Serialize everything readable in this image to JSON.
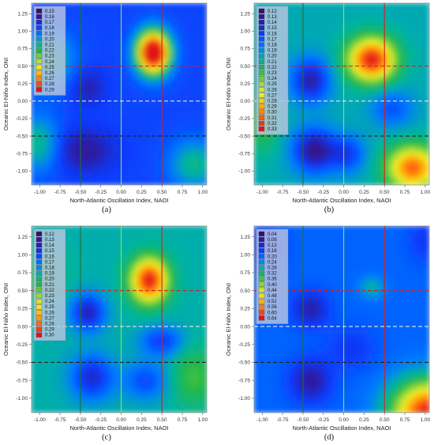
{
  "chart_data": [
    {
      "type": "heatmap",
      "panel_label": "(a)",
      "xlabel": "North-Atlantic Oscillation Index, NAOI",
      "ylabel": "Oceanic El-Niño Index, ONI",
      "xlim": [
        -1.1,
        1.05
      ],
      "ylim": [
        -1.2,
        1.4
      ],
      "x_ticks": [
        "-1.00",
        "-0.75",
        "-0.50",
        "-0.25",
        "0.00",
        "0.25",
        "0.50",
        "0.75",
        "1.00"
      ],
      "y_ticks": [
        "1.25",
        "1.00",
        "0.75",
        "0.50",
        "0.25",
        "0.00",
        "-0.25",
        "-0.50",
        "-0.75",
        "-1.00"
      ],
      "legend_levels": [
        "0.15",
        "0.16",
        "0.17",
        "0.18",
        "0.19",
        "0.20",
        "0.21",
        "0.22",
        "0.23",
        "0.24",
        "0.25",
        "0.26",
        "0.27",
        "0.28",
        "0.29"
      ],
      "vmin": 0.15,
      "vmax": 0.29,
      "base": 0.18,
      "peaks": [
        {
          "x": 0.4,
          "y": 0.7,
          "sx": 0.2,
          "sy": 0.3,
          "v": 0.135
        },
        {
          "x": -0.45,
          "y": -0.7,
          "sx": 0.35,
          "sy": 0.3,
          "v": -0.02
        },
        {
          "x": -0.4,
          "y": 0.2,
          "sx": 0.2,
          "sy": 0.25,
          "v": -0.015
        },
        {
          "x": -0.9,
          "y": 0.6,
          "sx": 0.3,
          "sy": 0.4,
          "v": 0.035
        },
        {
          "x": 0.9,
          "y": -0.9,
          "sx": 0.3,
          "sy": 0.35,
          "v": 0.03
        },
        {
          "x": -1.0,
          "y": -0.6,
          "sx": 0.25,
          "sy": 0.4,
          "v": 0.03
        }
      ],
      "vlines": [
        {
          "x": -0.5,
          "color": "#1e6e3c",
          "dash": false
        },
        {
          "x": 0.0,
          "color": "#9be23c",
          "dash": false
        },
        {
          "x": 0.5,
          "color": "#d22020",
          "dash": false
        }
      ],
      "hlines": [
        {
          "y": 0.5,
          "color": "#d22020"
        },
        {
          "y": 0.0,
          "color": "#e8e8e8"
        },
        {
          "y": -0.5,
          "color": "#222222"
        }
      ]
    },
    {
      "type": "heatmap",
      "panel_label": "(b)",
      "xlabel": "North-Atlantic Oscillation Index, NAOI",
      "ylabel": "Oceanic El-Niño Index, ONI",
      "xlim": [
        -1.1,
        1.05
      ],
      "ylim": [
        -1.2,
        1.4
      ],
      "x_ticks": [
        "-1.00",
        "-0.75",
        "-0.50",
        "-0.25",
        "0.00",
        "0.25",
        "0.50",
        "0.75",
        "1.00"
      ],
      "y_ticks": [
        "1.25",
        "1.00",
        "0.75",
        "0.50",
        "0.25",
        "0.00",
        "-0.25",
        "-0.50",
        "-0.75",
        "-1.00"
      ],
      "legend_levels": [
        "0.12",
        "0.13",
        "0.14",
        "0.15",
        "0.16",
        "0.17",
        "0.18",
        "0.19",
        "0.20",
        "0.21",
        "0.22",
        "0.23",
        "0.24",
        "0.25",
        "0.26",
        "0.27",
        "0.28",
        "0.29",
        "0.30",
        "0.31",
        "0.32",
        "0.33"
      ],
      "vmin": 0.12,
      "vmax": 0.33,
      "base": 0.2,
      "peaks": [
        {
          "x": 0.35,
          "y": 0.6,
          "sx": 0.28,
          "sy": 0.3,
          "v": 0.13
        },
        {
          "x": -0.4,
          "y": 0.3,
          "sx": 0.22,
          "sy": 0.3,
          "v": -0.06
        },
        {
          "x": -0.35,
          "y": -0.7,
          "sx": 0.25,
          "sy": 0.3,
          "v": -0.07
        },
        {
          "x": 0.05,
          "y": -0.75,
          "sx": 0.2,
          "sy": 0.25,
          "v": -0.04
        },
        {
          "x": 0.85,
          "y": -0.95,
          "sx": 0.3,
          "sy": 0.3,
          "v": 0.11
        },
        {
          "x": -1.0,
          "y": -0.3,
          "sx": 0.2,
          "sy": 0.4,
          "v": 0.03
        },
        {
          "x": 0.6,
          "y": -0.1,
          "sx": 0.25,
          "sy": 0.25,
          "v": -0.03
        }
      ],
      "vlines": [
        {
          "x": -0.5,
          "color": "#1e6e3c",
          "dash": false
        },
        {
          "x": 0.0,
          "color": "#9be23c",
          "dash": false
        },
        {
          "x": 0.5,
          "color": "#d22020",
          "dash": false
        }
      ],
      "hlines": [
        {
          "y": 0.5,
          "color": "#d22020"
        },
        {
          "y": 0.0,
          "color": "#e8e8e8"
        },
        {
          "y": -0.5,
          "color": "#222222"
        }
      ]
    },
    {
      "type": "heatmap",
      "panel_label": "(c)",
      "xlabel": "North-Atlantic Oscillation Index, NAOI",
      "ylabel": "Oceanic El-Niño Index, ONI",
      "xlim": [
        -1.1,
        1.05
      ],
      "ylim": [
        -1.2,
        1.4
      ],
      "x_ticks": [
        "-1.00",
        "-0.75",
        "-0.50",
        "-0.25",
        "0.00",
        "0.25",
        "0.50",
        "0.75",
        "1.00"
      ],
      "y_ticks": [
        "1.25",
        "1.00",
        "0.75",
        "0.50",
        "0.25",
        "0.00",
        "-0.25",
        "-0.50",
        "-0.75",
        "-1.00"
      ],
      "legend_levels": [
        "0.12",
        "0.13",
        "0.14",
        "0.15",
        "0.16",
        "0.17",
        "0.18",
        "0.19",
        "0.20",
        "0.21",
        "0.22",
        "0.23",
        "0.24",
        "0.25",
        "0.26",
        "0.27",
        "0.28",
        "0.29",
        "0.30"
      ],
      "vmin": 0.12,
      "vmax": 0.3,
      "base": 0.19,
      "peaks": [
        {
          "x": 0.35,
          "y": 0.65,
          "sx": 0.22,
          "sy": 0.3,
          "v": 0.11
        },
        {
          "x": -0.4,
          "y": 0.2,
          "sx": 0.2,
          "sy": 0.25,
          "v": -0.05
        },
        {
          "x": -0.35,
          "y": -0.7,
          "sx": 0.25,
          "sy": 0.3,
          "v": -0.045
        },
        {
          "x": 0.3,
          "y": -0.75,
          "sx": 0.25,
          "sy": 0.25,
          "v": -0.03
        },
        {
          "x": 0.5,
          "y": -0.2,
          "sx": 0.25,
          "sy": 0.2,
          "v": -0.035
        },
        {
          "x": -0.95,
          "y": 0.7,
          "sx": 0.25,
          "sy": 0.4,
          "v": 0.02
        },
        {
          "x": 0.9,
          "y": -0.7,
          "sx": 0.25,
          "sy": 0.4,
          "v": 0.025
        }
      ],
      "vlines": [
        {
          "x": -0.5,
          "color": "#1e6e3c",
          "dash": false
        },
        {
          "x": 0.0,
          "color": "#9be23c",
          "dash": false
        },
        {
          "x": 0.5,
          "color": "#d22020",
          "dash": false
        }
      ],
      "hlines": [
        {
          "y": 0.5,
          "color": "#d22020"
        },
        {
          "y": 0.0,
          "color": "#e8e8e8"
        },
        {
          "y": -0.5,
          "color": "#222222"
        }
      ]
    },
    {
      "type": "heatmap",
      "panel_label": "(d)",
      "xlabel": "North-Atlantic Oscillation Index, NAOI",
      "ylabel": "Oceanic El-Niño Index, ONI",
      "xlim": [
        -1.1,
        1.05
      ],
      "ylim": [
        -1.2,
        1.4
      ],
      "x_ticks": [
        "-1.00",
        "-0.75",
        "-0.50",
        "-0.25",
        "0.00",
        "0.25",
        "0.50",
        "0.75",
        "1.00"
      ],
      "y_ticks": [
        "1.25",
        "1.00",
        "0.75",
        "0.50",
        "0.25",
        "0.00",
        "-0.25",
        "-0.50",
        "-0.75",
        "-1.00"
      ],
      "legend_levels": [
        "0.04",
        "0.08",
        "0.12",
        "0.16",
        "0.20",
        "0.24",
        "0.28",
        "0.32",
        "0.36",
        "0.40",
        "0.44",
        "0.48",
        "0.52",
        "0.56",
        "0.60",
        "0.64"
      ],
      "vmin": 0.04,
      "vmax": 0.64,
      "base": 0.2,
      "peaks": [
        {
          "x": 1.05,
          "y": -1.2,
          "sx": 0.45,
          "sy": 0.45,
          "v": 0.44
        },
        {
          "x": -0.4,
          "y": 0.25,
          "sx": 0.22,
          "sy": 0.25,
          "v": -0.1
        },
        {
          "x": -0.4,
          "y": -0.75,
          "sx": 0.25,
          "sy": 0.3,
          "v": -0.11
        },
        {
          "x": 0.35,
          "y": 0.55,
          "sx": 0.15,
          "sy": 0.15,
          "v": 0.08
        },
        {
          "x": 0.1,
          "y": -0.3,
          "sx": 0.3,
          "sy": 0.3,
          "v": -0.05
        },
        {
          "x": -0.95,
          "y": 1.1,
          "sx": 0.25,
          "sy": 0.3,
          "v": -0.06
        },
        {
          "x": 1.0,
          "y": 1.2,
          "sx": 0.2,
          "sy": 0.3,
          "v": -0.05
        }
      ],
      "vlines": [
        {
          "x": -0.5,
          "color": "#1e6e3c",
          "dash": false
        },
        {
          "x": 0.0,
          "color": "#9be23c",
          "dash": false
        },
        {
          "x": 0.5,
          "color": "#d22020",
          "dash": false
        }
      ],
      "hlines": [
        {
          "y": 0.5,
          "color": "#d22020"
        },
        {
          "y": 0.0,
          "color": "#e8e8e8"
        },
        {
          "y": -0.5,
          "color": "#222222"
        }
      ]
    }
  ],
  "colormap": [
    "#3a0f6b",
    "#2a1fa8",
    "#0a3cff",
    "#0078ff",
    "#00b4a0",
    "#22b848",
    "#8ed83a",
    "#f0f02a",
    "#ffb400",
    "#ff6010",
    "#e01515"
  ]
}
